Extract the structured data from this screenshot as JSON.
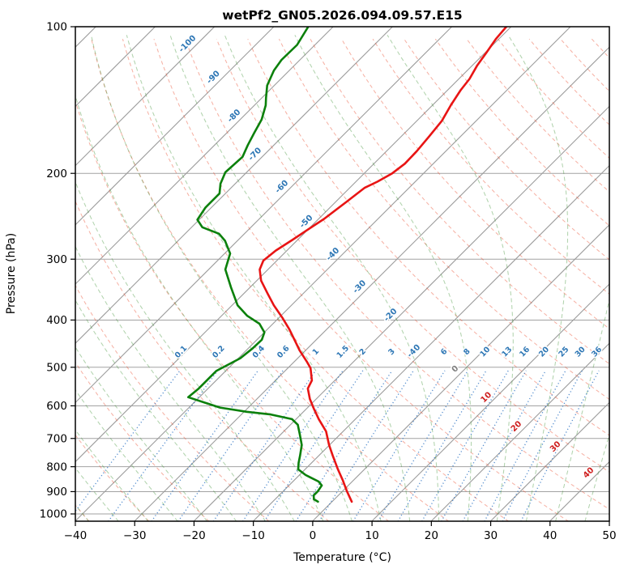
{
  "title": "wetPf2_GN05.2026.094.09.57.E15",
  "x_axis": {
    "label": "Temperature (°C)",
    "ticks": [
      -40,
      -30,
      -20,
      -10,
      0,
      10,
      20,
      30,
      40,
      50
    ],
    "range": [
      -40,
      50
    ]
  },
  "y_axis": {
    "label": "Pressure (hPa)",
    "ticks": [
      100,
      200,
      300,
      400,
      500,
      600,
      700,
      800,
      900,
      1000
    ],
    "scale": "log",
    "range_top": 100,
    "range_bottom": 1036
  },
  "colors": {
    "temperature": "#e81414",
    "dewpoint": "#0b800b",
    "isotherm": "#9c9c9c",
    "isobar": "#a2a2a2",
    "dry_adiabat": "rgba(235,85,55,0.45)",
    "moist_adiabat": "rgba(70,150,60,0.42)",
    "mixing_ratio": "rgba(45,115,195,0.8)",
    "label_negative": "#2e77b5",
    "label_zero": "#808080",
    "label_positive": "#cf2020",
    "spine": "#000000"
  },
  "chart_data": {
    "type": "line",
    "projection": "skew-t-log-p",
    "skew_deg": 45,
    "title": "wetPf2_GN05.2026.094.09.57.E15",
    "xlabel": "Temperature (°C)",
    "ylabel": "Pressure (hPa)",
    "xlim": [
      -40,
      50
    ],
    "p_top": 100,
    "p_bottom": 1036,
    "grid": true,
    "isobars": [
      100,
      200,
      300,
      400,
      500,
      600,
      700,
      800,
      900,
      1000
    ],
    "isotherms": {
      "start": -160,
      "end": 50,
      "step": 10
    },
    "dry_adiabats": {
      "start": -50,
      "end": 200,
      "step": 10
    },
    "moist_adiabats": {
      "start": -40,
      "end": 50,
      "step": 5
    },
    "mixing_ratio_lines": [
      0.1,
      0.2,
      0.4,
      0.6,
      1,
      1.5,
      2,
      3,
      4,
      6,
      8,
      10,
      13,
      16,
      20,
      25,
      30,
      36
    ],
    "mixing_label_pressure": 472,
    "mixing_line_top_pressure": 505,
    "isotherm_labels": [
      {
        "t": -100,
        "p": 111
      },
      {
        "t": -90,
        "p": 130
      },
      {
        "t": -80,
        "p": 156
      },
      {
        "t": -70,
        "p": 187
      },
      {
        "t": -60,
        "p": 218
      },
      {
        "t": -50,
        "p": 257
      },
      {
        "t": -40,
        "p": 300
      },
      {
        "t": -30,
        "p": 350
      },
      {
        "t": -20,
        "p": 400
      },
      {
        "t": -10,
        "p": 474
      },
      {
        "t": 0,
        "p": 516
      },
      {
        "t": 10,
        "p": 590
      },
      {
        "t": 20,
        "p": 677
      },
      {
        "t": 30,
        "p": 745
      },
      {
        "t": 40,
        "p": 843
      }
    ],
    "series": [
      {
        "name": "temperature",
        "units": [
          "hPa",
          "degC"
        ],
        "points": [
          [
            100,
            -50.8
          ],
          [
            106,
            -50.5
          ],
          [
            113,
            -49.8
          ],
          [
            120,
            -49.2
          ],
          [
            128,
            -48.2
          ],
          [
            135,
            -47.8
          ],
          [
            145,
            -46.9
          ],
          [
            156,
            -45.8
          ],
          [
            168,
            -45.3
          ],
          [
            180,
            -44.9
          ],
          [
            191,
            -44.8
          ],
          [
            200,
            -45.3
          ],
          [
            208,
            -46.4
          ],
          [
            214,
            -47.5
          ],
          [
            229,
            -48.2
          ],
          [
            248,
            -49.1
          ],
          [
            262,
            -50.1
          ],
          [
            274,
            -50.9
          ],
          [
            288,
            -51.9
          ],
          [
            302,
            -52.3
          ],
          [
            315,
            -51.4
          ],
          [
            332,
            -49.3
          ],
          [
            353,
            -46.0
          ],
          [
            373,
            -43.0
          ],
          [
            396,
            -39.4
          ],
          [
            418,
            -36.3
          ],
          [
            439,
            -33.7
          ],
          [
            462,
            -31.0
          ],
          [
            487,
            -27.9
          ],
          [
            502,
            -26.2
          ],
          [
            532,
            -23.9
          ],
          [
            553,
            -23.2
          ],
          [
            581,
            -21.1
          ],
          [
            608,
            -18.8
          ],
          [
            639,
            -16.2
          ],
          [
            677,
            -12.9
          ],
          [
            722,
            -10.1
          ],
          [
            759,
            -7.7
          ],
          [
            810,
            -4.5
          ],
          [
            852,
            -1.9
          ],
          [
            898,
            0.7
          ],
          [
            944,
            3.3
          ]
        ]
      },
      {
        "name": "dewpoint",
        "units": [
          "hPa",
          "degC"
        ],
        "points": [
          [
            100,
            -84.2
          ],
          [
            109,
            -83.0
          ],
          [
            117,
            -83.1
          ],
          [
            123,
            -82.6
          ],
          [
            132,
            -81.2
          ],
          [
            140,
            -79.3
          ],
          [
            145,
            -78.1
          ],
          [
            155,
            -76.4
          ],
          [
            165,
            -75.4
          ],
          [
            175,
            -74.4
          ],
          [
            185,
            -73.3
          ],
          [
            199,
            -73.6
          ],
          [
            210,
            -72.5
          ],
          [
            220,
            -71.0
          ],
          [
            235,
            -71.0
          ],
          [
            249,
            -70.3
          ],
          [
            258,
            -68.2
          ],
          [
            266,
            -64.3
          ],
          [
            275,
            -62.1
          ],
          [
            292,
            -59.1
          ],
          [
            315,
            -57.2
          ],
          [
            343,
            -53.2
          ],
          [
            373,
            -49.1
          ],
          [
            392,
            -45.7
          ],
          [
            407,
            -42.3
          ],
          [
            424,
            -40.0
          ],
          [
            439,
            -39.2
          ],
          [
            457,
            -39.3
          ],
          [
            479,
            -39.7
          ],
          [
            509,
            -41.6
          ],
          [
            553,
            -41.6
          ],
          [
            576,
            -41.9
          ],
          [
            605,
            -34.8
          ],
          [
            617,
            -29.6
          ],
          [
            625,
            -25.1
          ],
          [
            639,
            -20.7
          ],
          [
            656,
            -18.8
          ],
          [
            687,
            -16.8
          ],
          [
            722,
            -14.7
          ],
          [
            759,
            -13.2
          ],
          [
            786,
            -12.2
          ],
          [
            810,
            -11.2
          ],
          [
            832,
            -9.0
          ],
          [
            858,
            -5.7
          ],
          [
            874,
            -4.5
          ],
          [
            898,
            -4.2
          ],
          [
            916,
            -4.2
          ],
          [
            933,
            -3.5
          ],
          [
            944,
            -2.4
          ]
        ]
      }
    ]
  }
}
